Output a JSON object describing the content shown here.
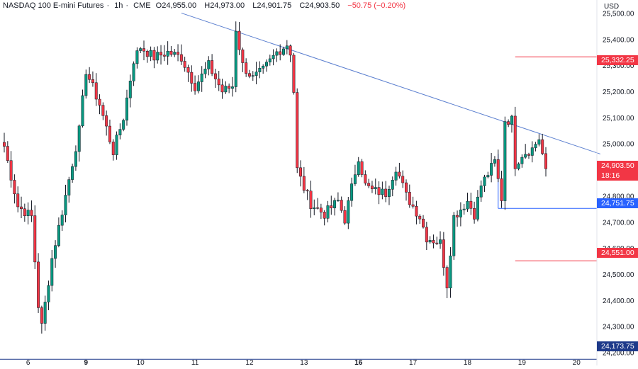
{
  "header": {
    "instrument": "NASDAQ 100 E-mini Futures",
    "interval": "1h",
    "exchange": "CME",
    "open_label": "O",
    "open_value": "24,955.00",
    "high_label": "H",
    "high_value": "24,973.00",
    "low_label": "L",
    "low_value": "24,901.75",
    "close_label": "C",
    "close_value": "24,903.50",
    "change": "−50.75 (−0.20%)",
    "separator": "·"
  },
  "currency": "USD",
  "colors": {
    "up": "#089981",
    "down": "#f23645",
    "trendline": "#5b7fcf",
    "level_red": "#f23645",
    "level_blue": "#2962ff",
    "level_navy": "#1e3a8a",
    "axis_text": "#131722",
    "bg": "#ffffff"
  },
  "price_tags": {
    "upper_level": "25,332.25",
    "last_price": "24,903.50",
    "countdown": "18:16",
    "mid_level": "24,751.75",
    "lower_level": "24,551.00",
    "bottom_level": "24,173.75"
  },
  "chart_data": {
    "type": "candlestick",
    "title": "NASDAQ 100 E-mini Futures · 1h · CME",
    "ylim": [
      24160,
      25520
    ],
    "y_ticks": [
      25500,
      25400,
      25300,
      25200,
      25100,
      25000,
      24800,
      24700,
      24600,
      24500,
      24400,
      24300,
      24200
    ],
    "y_tick_labels": [
      "25,500.00",
      "25,400.00",
      "25,300.00",
      "25,200.00",
      "25,100.00",
      "25,000.00",
      "24,800.00",
      "24,700.00",
      "24,600.00",
      "24,500.00",
      "24,400.00",
      "24,300.00",
      "24,200.00"
    ],
    "x_tick_labels": [
      "6",
      "9",
      "10",
      "11",
      "12",
      "13",
      "16",
      "17",
      "18",
      "19",
      "20"
    ],
    "x_tick_bold": [
      false,
      true,
      false,
      false,
      false,
      false,
      true,
      false,
      false,
      false,
      false
    ],
    "x_tick_index": [
      7,
      24,
      40,
      56,
      72,
      88,
      104,
      120,
      136,
      152,
      168
    ],
    "bar_count": 160,
    "anchors": [
      [
        0,
        24990
      ],
      [
        4,
        24760
      ],
      [
        8,
        24720
      ],
      [
        10,
        24380
      ],
      [
        11,
        24300
      ],
      [
        14,
        24560
      ],
      [
        18,
        24800
      ],
      [
        22,
        25050
      ],
      [
        24,
        25280
      ],
      [
        28,
        25150
      ],
      [
        32,
        24970
      ],
      [
        35,
        25100
      ],
      [
        38,
        25320
      ],
      [
        40,
        25370
      ],
      [
        44,
        25330
      ],
      [
        48,
        25350
      ],
      [
        52,
        25330
      ],
      [
        56,
        25220
      ],
      [
        60,
        25300
      ],
      [
        64,
        25200
      ],
      [
        67,
        25220
      ],
      [
        68,
        25440
      ],
      [
        70,
        25300
      ],
      [
        73,
        25250
      ],
      [
        76,
        25280
      ],
      [
        80,
        25350
      ],
      [
        83,
        25380
      ],
      [
        84,
        25350
      ],
      [
        85,
        25200
      ],
      [
        86,
        24900
      ],
      [
        88,
        24830
      ],
      [
        90,
        24770
      ],
      [
        94,
        24730
      ],
      [
        98,
        24780
      ],
      [
        100,
        24710
      ],
      [
        104,
        24950
      ],
      [
        106,
        24840
      ],
      [
        108,
        24820
      ],
      [
        112,
        24810
      ],
      [
        115,
        24910
      ],
      [
        118,
        24800
      ],
      [
        122,
        24720
      ],
      [
        124,
        24640
      ],
      [
        128,
        24620
      ],
      [
        130,
        24460
      ],
      [
        132,
        24720
      ],
      [
        136,
        24780
      ],
      [
        138,
        24730
      ],
      [
        140,
        24840
      ],
      [
        144,
        24930
      ],
      [
        146,
        24790
      ],
      [
        147,
        25090
      ],
      [
        149,
        25090
      ],
      [
        150,
        24920
      ],
      [
        152,
        24960
      ],
      [
        155,
        24980
      ],
      [
        157,
        25020
      ],
      [
        158,
        24960
      ],
      [
        159,
        24903.5
      ]
    ],
    "trendline": {
      "from": [
        52,
        25500
      ],
      "to": [
        175,
        24960
      ]
    },
    "levels": [
      {
        "value": 25332.25,
        "label": "25,332.25",
        "color": "red",
        "from_index": 150
      },
      {
        "value": 24751.75,
        "label": "24,751.75",
        "color": "blue",
        "from_index": 145
      },
      {
        "value": 24551.0,
        "label": "24,551.00",
        "color": "red",
        "from_index": 150
      },
      {
        "value": 24173.75,
        "label": "24,173.75",
        "color": "navy",
        "from_index": -10
      }
    ],
    "last_price": 24903.5
  }
}
